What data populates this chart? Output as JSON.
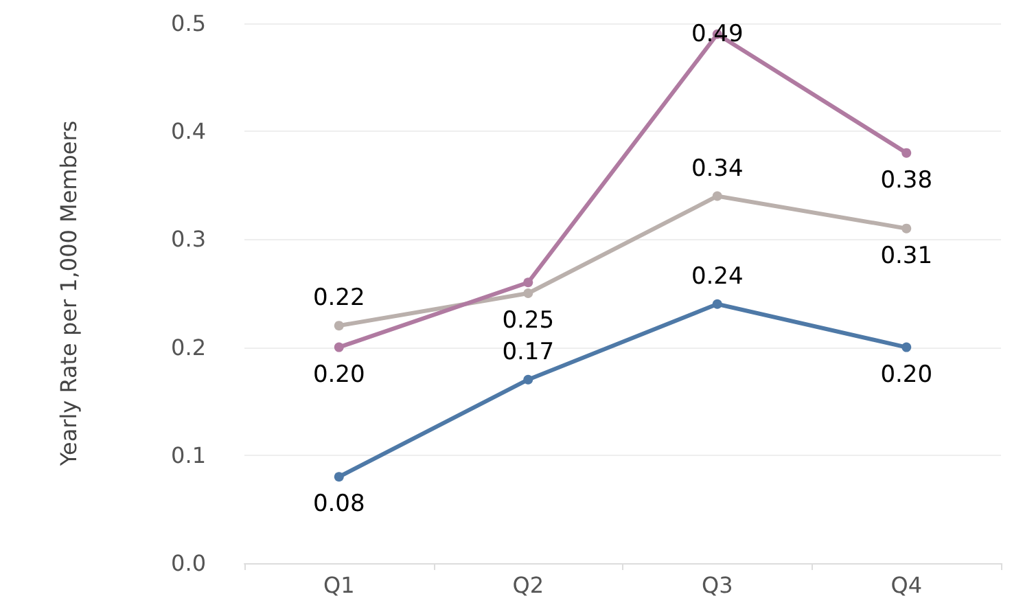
{
  "chart_data": {
    "type": "line",
    "ylabel": "Yearly Rate per 1,000 Members",
    "categories": [
      "Q1",
      "Q2",
      "Q3",
      "Q4"
    ],
    "series": [
      {
        "color": "#4e79a7",
        "values": [
          0.08,
          0.17,
          0.24,
          0.2
        ],
        "value_labels": [
          "0.08",
          "0.17",
          "0.24",
          "0.20"
        ]
      },
      {
        "color": "#bab0ac",
        "values": [
          0.22,
          0.25,
          0.34,
          0.31
        ],
        "value_labels": [
          "0.22",
          "0.25",
          "0.34",
          "0.31"
        ]
      },
      {
        "color": "#b07aa1",
        "values": [
          0.2,
          0.26,
          0.49,
          0.38
        ],
        "value_labels": [
          "0.20",
          null,
          "0.49",
          "0.38"
        ]
      }
    ],
    "ylim": [
      0,
      0.5
    ],
    "yticks": [
      {
        "value": 0,
        "label": "0.0"
      },
      0.1,
      0.2,
      0.3,
      0.4,
      0.5
    ],
    "grid": "y",
    "marker": "circle",
    "line_style": "solid"
  }
}
